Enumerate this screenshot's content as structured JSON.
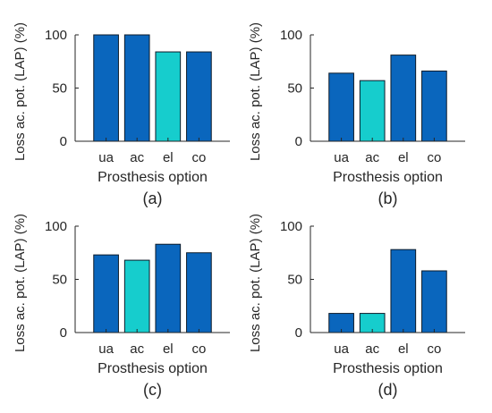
{
  "colors": {
    "bar_default": "#0a66bd",
    "bar_highlight": "#16cdcd",
    "bar_edge": "#0d1b2a",
    "axis": "#262626"
  },
  "chart_data": [
    {
      "type": "bar",
      "panel_label": "(a)",
      "categories": [
        "ua",
        "ac",
        "el",
        "co"
      ],
      "values": [
        100,
        100,
        84,
        84
      ],
      "highlight_index": 2,
      "xlabel": "Prosthesis option",
      "ylabel": "Loss ac. pot. (LAP) (%)",
      "ylim": [
        0,
        100
      ],
      "yticks": [
        0,
        50,
        100
      ],
      "grid": false
    },
    {
      "type": "bar",
      "panel_label": "(b)",
      "categories": [
        "ua",
        "ac",
        "el",
        "co"
      ],
      "values": [
        64,
        57,
        81,
        66
      ],
      "highlight_index": 1,
      "xlabel": "Prosthesis option",
      "ylabel": "Loss ac. pot. (LAP) (%)",
      "ylim": [
        0,
        100
      ],
      "yticks": [
        0,
        50,
        100
      ],
      "grid": false
    },
    {
      "type": "bar",
      "panel_label": "(c)",
      "categories": [
        "ua",
        "ac",
        "el",
        "co"
      ],
      "values": [
        73,
        68,
        83,
        75
      ],
      "highlight_index": 1,
      "xlabel": "Prosthesis option",
      "ylabel": "Loss ac. pot. (LAP) (%)",
      "ylim": [
        0,
        100
      ],
      "yticks": [
        0,
        50,
        100
      ],
      "grid": false
    },
    {
      "type": "bar",
      "panel_label": "(d)",
      "categories": [
        "ua",
        "ac",
        "el",
        "co"
      ],
      "values": [
        18,
        18,
        78,
        58
      ],
      "highlight_index": 1,
      "xlabel": "Prosthesis option",
      "ylabel": "Loss ac. pot. (LAP) (%)",
      "ylim": [
        0,
        100
      ],
      "yticks": [
        0,
        50,
        100
      ],
      "grid": false
    }
  ]
}
